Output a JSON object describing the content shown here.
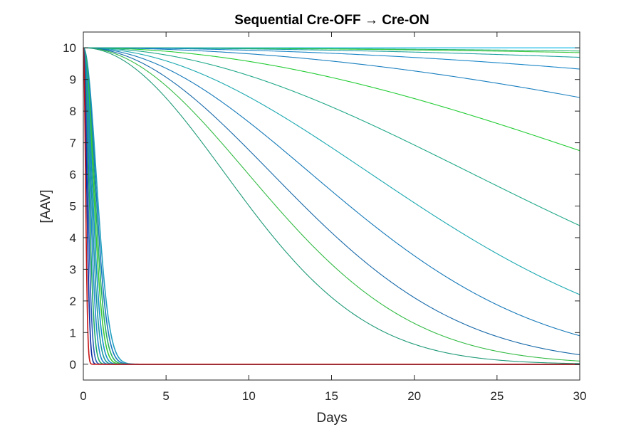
{
  "chart_data": {
    "type": "line",
    "title": "Sequential Cre-OFF → Cre-ON",
    "xlabel": "Days",
    "ylabel": "[AAV]",
    "xlim": [
      0,
      30
    ],
    "ylim": [
      -0.5,
      10.5
    ],
    "x_ticks": [
      "0",
      "5",
      "10",
      "15",
      "20",
      "25",
      "30"
    ],
    "y_ticks": [
      "0",
      "1",
      "2",
      "3",
      "4",
      "5",
      "6",
      "7",
      "8",
      "9",
      "10"
    ],
    "grid": false,
    "legend": "none",
    "initial_value": 10,
    "curve_shape": "sigmoidal decay from 10 toward 0",
    "series": [
      {
        "color": "#00b4e8",
        "end_value": 10.0
      },
      {
        "color": "#2ab56e",
        "end_value": 9.9
      },
      {
        "color": "#3cc83c",
        "end_value": 9.85
      },
      {
        "color": "#1fa0a0",
        "end_value": 9.7
      },
      {
        "color": "#1a86c8",
        "end_value": 9.33
      },
      {
        "color": "#1a7fc0",
        "end_value": 8.43
      },
      {
        "color": "#22cc33",
        "end_value": 6.75
      },
      {
        "color": "#20a888",
        "end_value": 4.38
      },
      {
        "color": "#1aa8b0",
        "end_value": 2.2
      },
      {
        "color": "#1478b8",
        "end_value": 0.9
      },
      {
        "color": "#1668a8",
        "end_value": 0.3
      },
      {
        "color": "#33bb44",
        "end_value": 0.1
      },
      {
        "color": "#1f9a78",
        "end_value": 0.02
      },
      {
        "color": "#22a0c0",
        "end_value": 0.0
      },
      {
        "color": "#1878c0",
        "end_value": 0.0
      },
      {
        "color": "#26b060",
        "end_value": 0.0
      },
      {
        "color": "#38c838",
        "end_value": 0.0
      },
      {
        "color": "#1490c8",
        "end_value": 0.0
      },
      {
        "color": "#1a9a9a",
        "end_value": 0.0
      },
      {
        "color": "#2288d0",
        "end_value": 0.0
      },
      {
        "color": "#1aa868",
        "end_value": 0.0
      },
      {
        "color": "#2a60b8",
        "end_value": 0.0
      },
      {
        "color": "#0a2aa0",
        "end_value": 0.0
      },
      {
        "color": "#c81414",
        "end_value": 0.0
      }
    ]
  }
}
